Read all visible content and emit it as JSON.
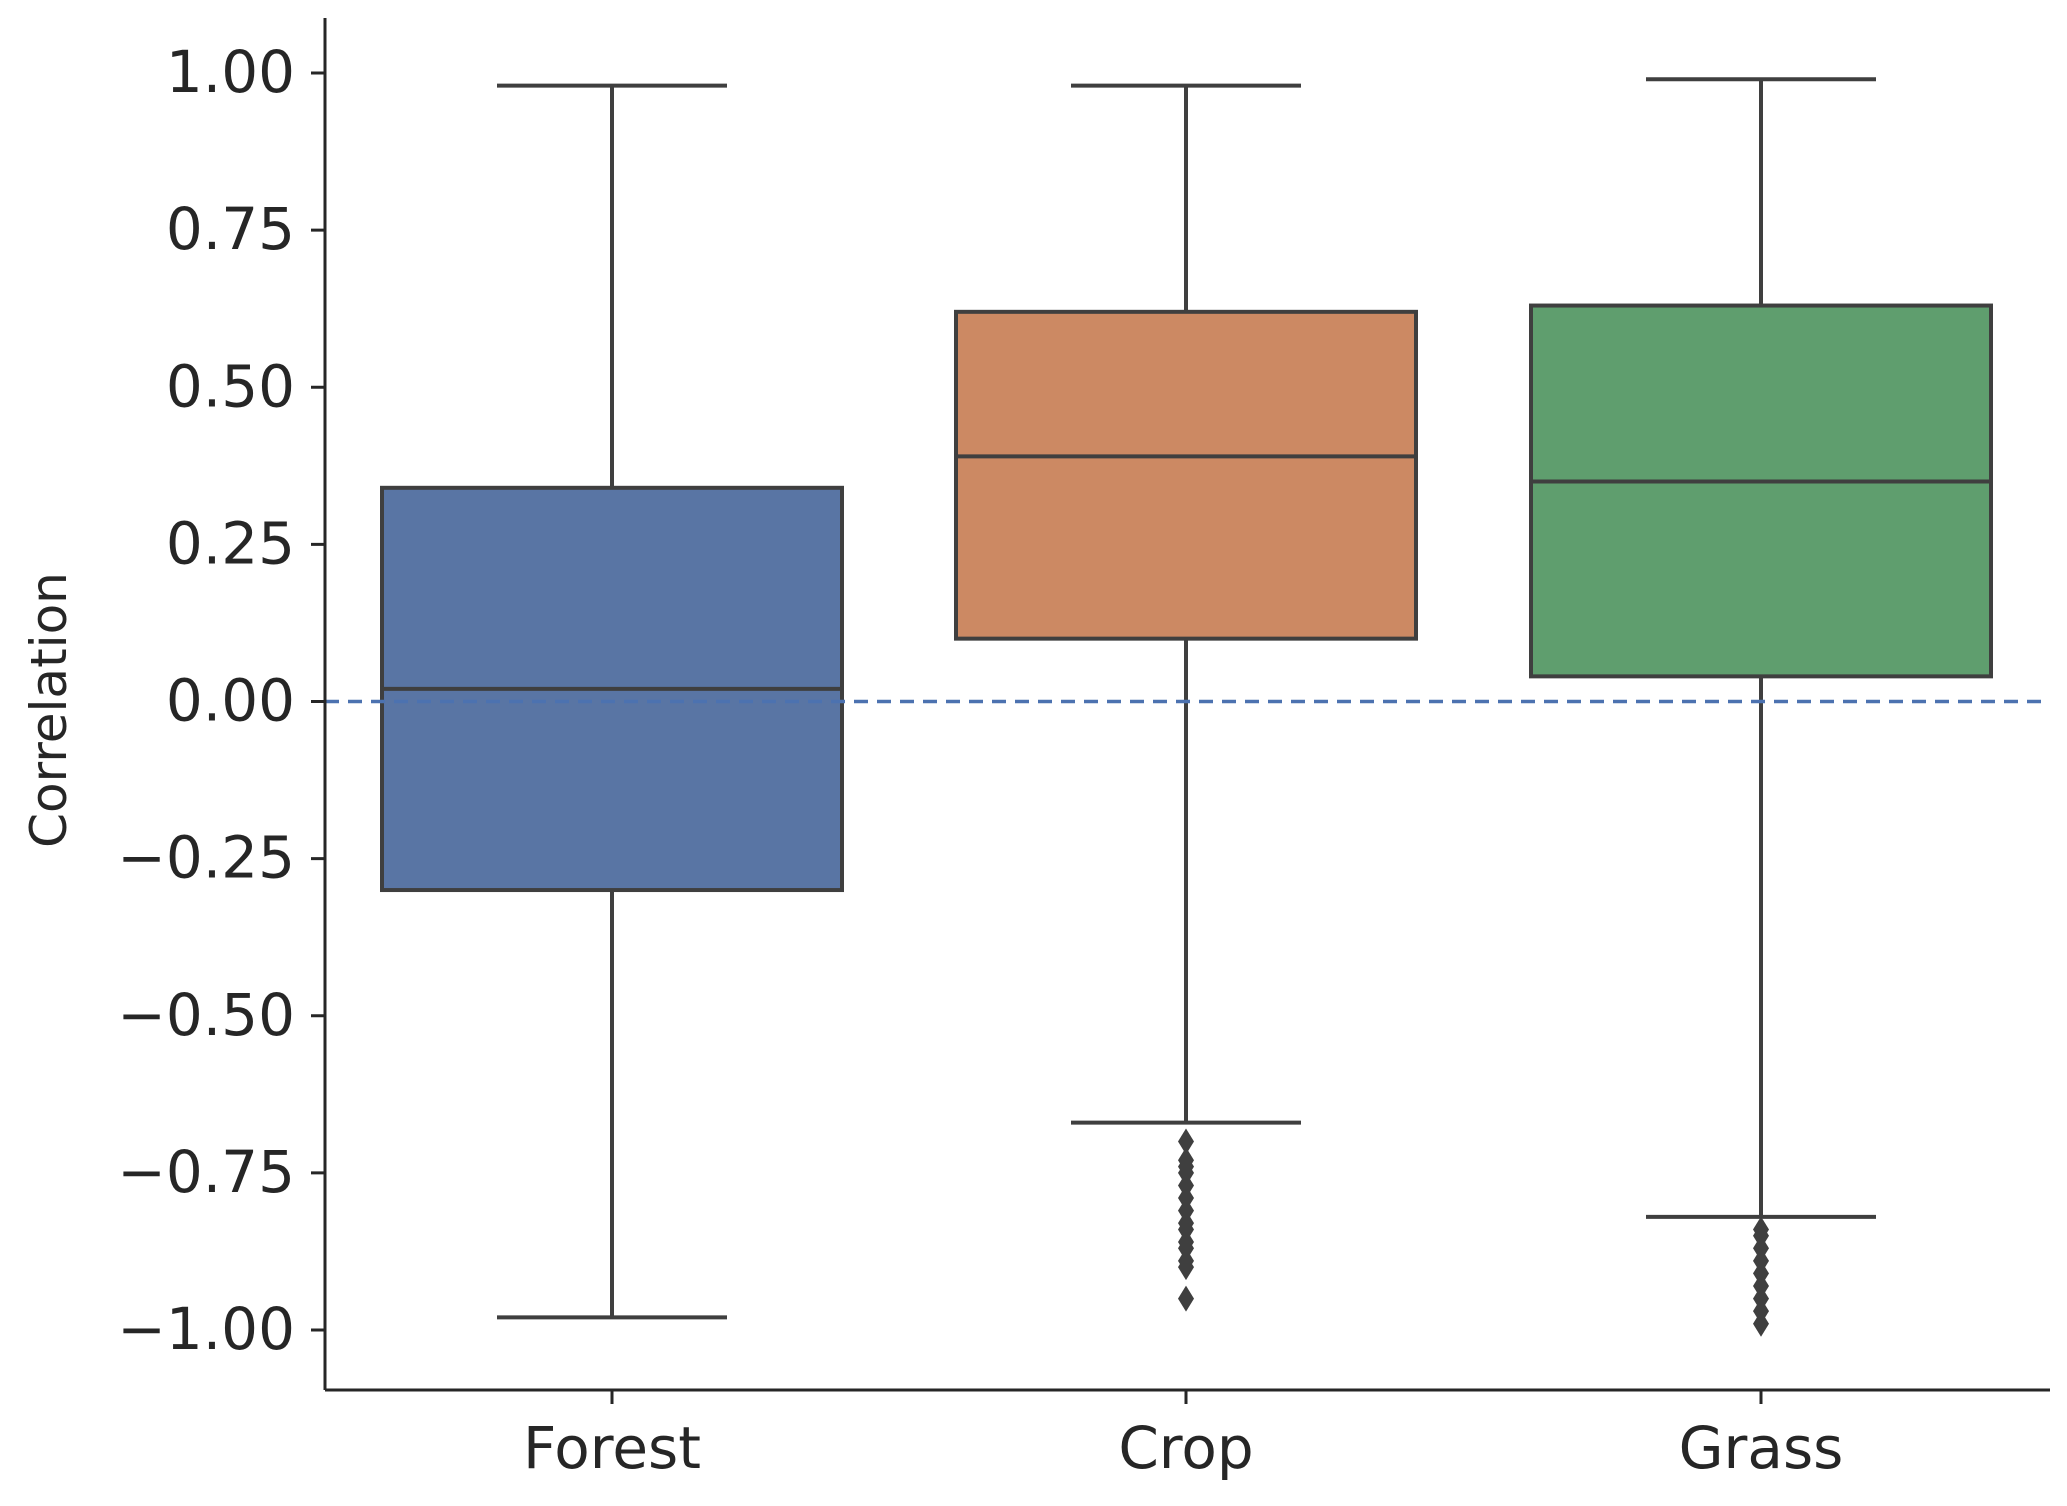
{
  "chart_data": {
    "type": "box",
    "title": "",
    "xlabel": "",
    "ylabel": "Correlation",
    "ylim": [
      -1.09,
      1.09
    ],
    "yticks": [
      1.0,
      0.75,
      0.5,
      0.25,
      0.0,
      -0.25,
      -0.5,
      -0.75,
      -1.0
    ],
    "ytick_labels": [
      "1.00",
      "0.75",
      "0.50",
      "0.25",
      "0.00",
      "−0.25",
      "−0.50",
      "−0.75",
      "−1.00"
    ],
    "categories": [
      "Forest",
      "Crop",
      "Grass"
    ],
    "boxes": [
      {
        "category": "Forest",
        "color": "#5975a4",
        "whisker_low": -0.98,
        "q1": -0.3,
        "median": 0.02,
        "q3": 0.34,
        "whisker_high": 0.98,
        "outliers": []
      },
      {
        "category": "Crop",
        "color": "#cc8963",
        "whisker_low": -0.67,
        "q1": 0.1,
        "median": 0.39,
        "q3": 0.62,
        "whisker_high": 0.98,
        "outliers": [
          -0.7,
          -0.73,
          -0.74,
          -0.75,
          -0.77,
          -0.79,
          -0.81,
          -0.83,
          -0.84,
          -0.86,
          -0.87,
          -0.89,
          -0.9,
          -0.95
        ]
      },
      {
        "category": "Grass",
        "color": "#5f9e6e",
        "whisker_low": -0.82,
        "q1": 0.04,
        "median": 0.35,
        "q3": 0.63,
        "whisker_high": 0.99,
        "outliers": [
          -0.84,
          -0.85,
          -0.87,
          -0.89,
          -0.91,
          -0.93,
          -0.95,
          -0.97,
          -0.99
        ]
      }
    ],
    "reference_line": {
      "y": 0.0,
      "style": "dashed",
      "color": "#4c72b0"
    },
    "grid": false,
    "legend": "none"
  }
}
